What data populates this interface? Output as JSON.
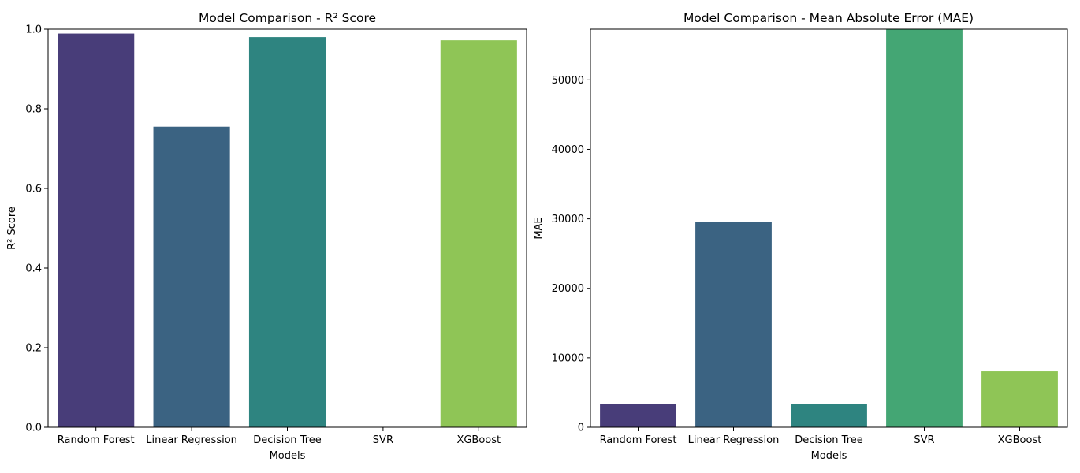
{
  "chart_data": [
    {
      "type": "bar",
      "title": "Model Comparison - R² Score",
      "xlabel": "Models",
      "ylabel": "R² Score",
      "categories": [
        "Random Forest",
        "Linear Regression",
        "Decision Tree",
        "SVR",
        "XGBoost"
      ],
      "values": [
        0.989,
        0.755,
        0.98,
        -0.05,
        0.972
      ],
      "ylim": [
        0,
        1.0
      ],
      "yticks": [
        0.0,
        0.2,
        0.4,
        0.6,
        0.8,
        1.0
      ],
      "ytick_labels": [
        "0.0",
        "0.2",
        "0.4",
        "0.6",
        "0.8",
        "1.0"
      ],
      "colors": [
        "#482878",
        "#3e4989",
        "#31688e",
        "#26828e",
        "#1f9e89",
        "#35b779",
        "#6ece58",
        "#b5de2b"
      ],
      "bar_colors": [
        "#483d79",
        "#3b6382",
        "#2e8480",
        "#44a674",
        "#8fc556"
      ],
      "grid": false,
      "legend": "none"
    },
    {
      "type": "bar",
      "title": "Model Comparison - Mean Absolute Error (MAE)",
      "xlabel": "Models",
      "ylabel": "MAE",
      "categories": [
        "Random Forest",
        "Linear Regression",
        "Decision Tree",
        "SVR",
        "XGBoost"
      ],
      "values": [
        3300,
        29600,
        3400,
        57300,
        8050
      ],
      "ylim": [
        0,
        57300
      ],
      "yticks": [
        0,
        10000,
        20000,
        30000,
        40000,
        50000
      ],
      "ytick_labels": [
        "0",
        "10000",
        "20000",
        "30000",
        "40000",
        "50000"
      ],
      "bar_colors": [
        "#483d79",
        "#3b6382",
        "#2e8480",
        "#44a674",
        "#8fc556"
      ],
      "grid": false,
      "legend": "none"
    }
  ]
}
